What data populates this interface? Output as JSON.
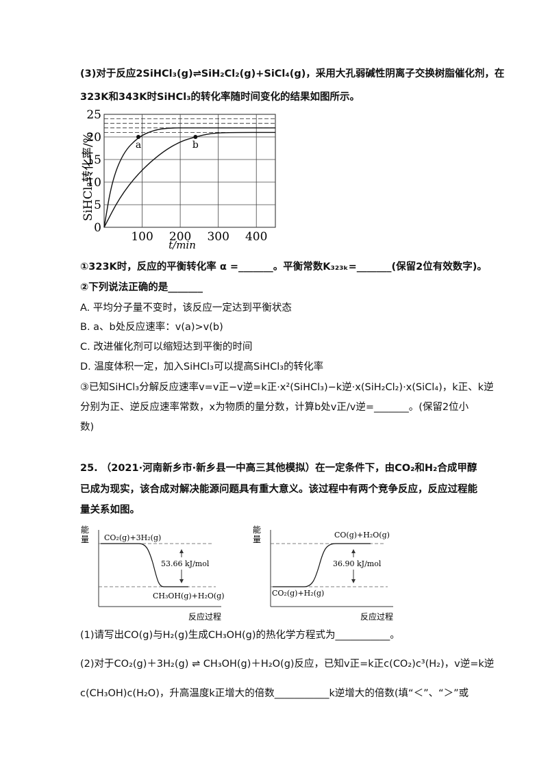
{
  "q3": {
    "l1": "(3)对于反应2SiHCl₃(g)⇌SiH₂Cl₂(g)+SiCl₄(g)，采用大孔弱碱性阴离子交换树脂催化剂，在",
    "l2": "323K和343K时SiHCl₃的转化率随时间变化的结果如图所示。",
    "s1": "①323K时，反应的平衡转化率 α =_______。平衡常数K₃₂₃ₖ=_______(保留2位有效数字)。",
    "s2": "②下列说法正确的是_______",
    "A": "A. 平均分子量不变时，该反应一定达到平衡状态",
    "B": "B. a、b处反应速率：v(a)>v(b)",
    "C": "C. 改进催化剂可以缩短达到平衡的时间",
    "D": "D. 温度体积一定，加入SiHCl₃可以提高SiHCl₃的转化率",
    "s3a": "③已知SiHCl₃分解反应速率v=v正−v逆=k正·x²(SiHCl₃)−k逆·x(SiH₂Cl₂)·x(SiCl₄)，k正、k逆",
    "s3b": "分别为正、逆反应速率常数，x为物质的量分数，计算b处v正/v逆=_______。(保留2位小",
    "s3c": "数)"
  },
  "chart_data": {
    "type": "line",
    "xlabel": "t/min",
    "ylabel": "SiHCl₃转化率/%",
    "xticks": [
      "100",
      "200",
      "300",
      "400"
    ],
    "yticks": [
      "0",
      "5",
      "10",
      "15",
      "20",
      "25"
    ],
    "xlim": [
      0,
      450
    ],
    "ylim": [
      0,
      25
    ],
    "grid": true,
    "series": [
      {
        "x": [
          0,
          20,
          50,
          90,
          130,
          170,
          220,
          300,
          450
        ],
        "values": [
          0,
          10,
          16.5,
          20,
          21.5,
          22,
          22,
          22,
          22
        ]
      },
      {
        "x": [
          0,
          40,
          90,
          150,
          200,
          240,
          280,
          330,
          450
        ],
        "values": [
          0,
          6.5,
          12,
          16.5,
          19,
          20,
          20.8,
          21,
          21
        ]
      }
    ],
    "points": [
      {
        "label": "a",
        "x": 90,
        "y": 20
      },
      {
        "label": "b",
        "x": 240,
        "y": 20
      }
    ],
    "dashed_levels": [
      21,
      22,
      23,
      24
    ]
  },
  "q25": {
    "l1": "25. （2021·河南新乡市·新乡县一中高三其他模拟）在一定条件下，由CO₂和H₂合成甲醇",
    "l2": "已成为现实，该合成对解决能源问题具有重大意义。该过程中有两个竞争反应，反应过程能",
    "l3": "量关系如图。",
    "d1": {
      "ylabel1": "能",
      "ylabel2": "量",
      "top": "CO₂(g)+3H₂(g)",
      "energy": "53.66 kJ/mol",
      "bottom": "CH₃OH(g)+H₂O(g)",
      "xlabel": "反应过程"
    },
    "d2": {
      "ylabel1": "能",
      "ylabel2": "量",
      "top": "CO(g)+H₂O(g)",
      "energy": "36.90 kJ/mol",
      "bottom": "CO₂(g)+H₂(g)",
      "xlabel": "反应过程"
    },
    "p1": "(1)请写出CO(g)与H₂(g)生成CH₃OH(g)的热化学方程式为___________。",
    "p2": "(2)对于CO₂(g)＋3H₂(g) ⇌ CH₃OH(g)＋H₂O(g)反应，已知v正=k正c(CO₂)c³(H₂)，v逆=k逆",
    "p3": "c(CH₃OH)c(H₂O)，升高温度k正增大的倍数___________k逆增大的倍数(填“＜”、“＞”或"
  }
}
